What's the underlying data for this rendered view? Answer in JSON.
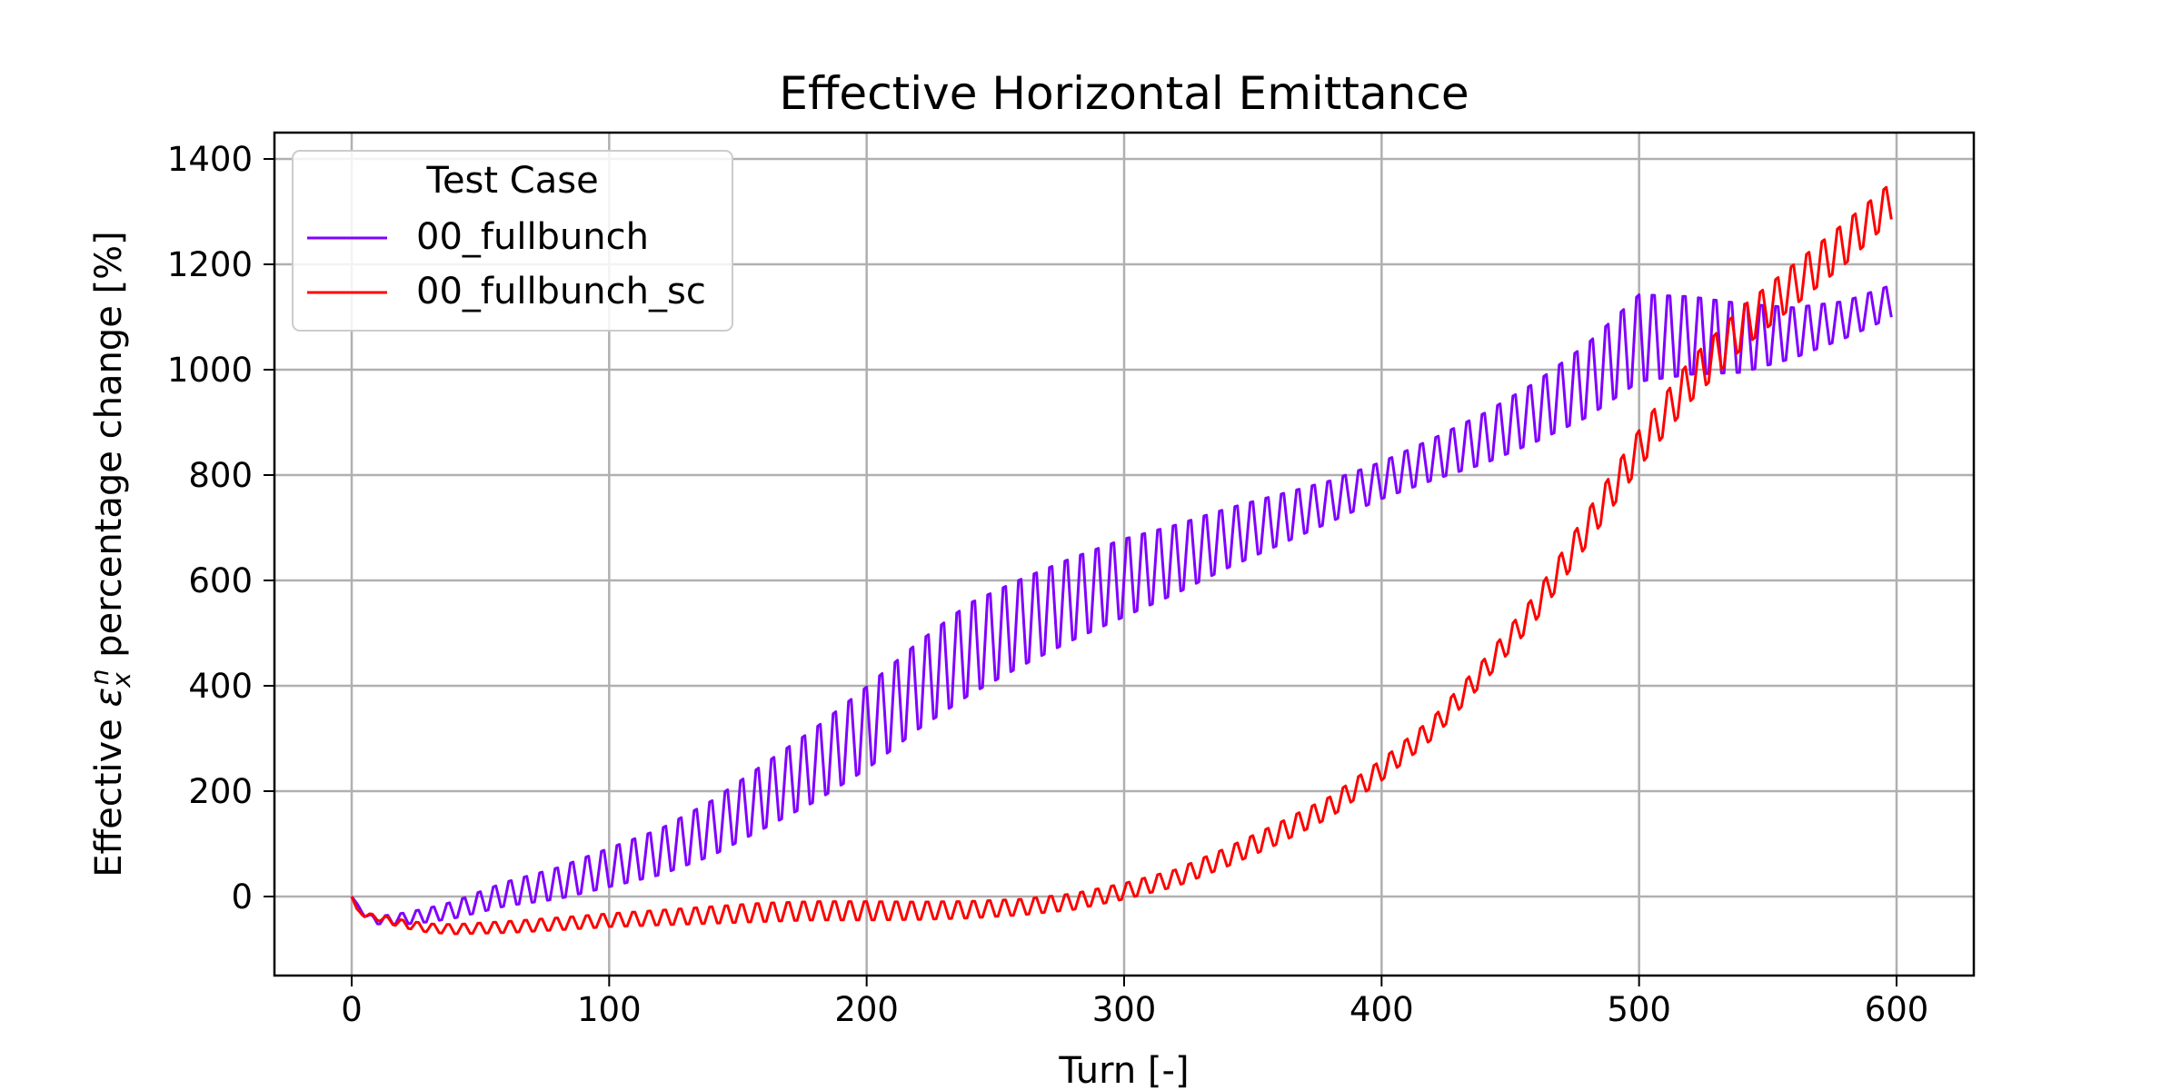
{
  "chart_data": {
    "type": "line",
    "title": "Effective Horizontal Emittance",
    "xlabel": "Turn [-]",
    "ylabel": {
      "prefix": "Effective ",
      "symbol": "ε",
      "sub": "x",
      "sup": "n",
      "suffix": " percentage change [%]"
    },
    "xlim": [
      -30,
      630
    ],
    "ylim": [
      -150,
      1450
    ],
    "xticks": [
      0,
      100,
      200,
      300,
      400,
      500,
      600
    ],
    "yticks": [
      0,
      200,
      400,
      600,
      800,
      1000,
      1200,
      1400
    ],
    "grid": true,
    "legend": {
      "title": "Test Case",
      "placement": "upper-left"
    },
    "series": [
      {
        "name": "00_fullbunch",
        "color": "#8000ff",
        "oscillation_period": 6,
        "x": [
          0,
          5,
          10,
          20,
          30,
          40,
          50,
          60,
          70,
          80,
          90,
          100,
          120,
          140,
          160,
          180,
          200,
          220,
          240,
          260,
          280,
          300,
          320,
          340,
          360,
          380,
          400,
          420,
          440,
          460,
          480,
          500,
          520,
          540,
          560,
          580,
          598
        ],
        "y": [
          0,
          -35,
          -45,
          -42,
          -35,
          -25,
          -10,
          5,
          15,
          25,
          40,
          55,
          85,
          130,
          190,
          250,
          320,
          400,
          470,
          520,
          565,
          605,
          640,
          680,
          715,
          750,
          790,
          830,
          870,
          920,
          980,
          1060,
          1065,
          1060,
          1070,
          1095,
          1130
        ],
        "amplitude": [
          0,
          3,
          8,
          12,
          15,
          18,
          22,
          26,
          30,
          34,
          38,
          42,
          50,
          60,
          70,
          80,
          90,
          95,
          100,
          95,
          90,
          85,
          75,
          65,
          55,
          45,
          40,
          45,
          55,
          65,
          80,
          95,
          85,
          75,
          55,
          40,
          35
        ]
      },
      {
        "name": "00_fullbunch_sc",
        "color": "#ff0000",
        "oscillation_period": 6,
        "x": [
          0,
          2,
          5,
          10,
          20,
          30,
          40,
          50,
          60,
          80,
          100,
          120,
          140,
          160,
          180,
          200,
          220,
          240,
          260,
          280,
          300,
          320,
          340,
          360,
          380,
          400,
          420,
          440,
          460,
          480,
          500,
          520,
          540,
          560,
          580,
          598
        ],
        "y": [
          0,
          -25,
          -35,
          -40,
          -52,
          -60,
          -62,
          -60,
          -58,
          -52,
          -45,
          -40,
          -35,
          -30,
          -27,
          -27,
          -27,
          -25,
          -20,
          -10,
          10,
          35,
          75,
          120,
          170,
          240,
          320,
          430,
          550,
          700,
          850,
          980,
          1080,
          1160,
          1240,
          1320
        ],
        "amplitude": [
          0,
          2,
          4,
          6,
          8,
          9,
          10,
          11,
          12,
          13,
          14,
          16,
          18,
          20,
          20,
          20,
          19,
          18,
          17,
          17,
          17,
          18,
          20,
          22,
          22,
          22,
          22,
          24,
          28,
          35,
          40,
          45,
          45,
          45,
          45,
          40
        ]
      }
    ]
  }
}
